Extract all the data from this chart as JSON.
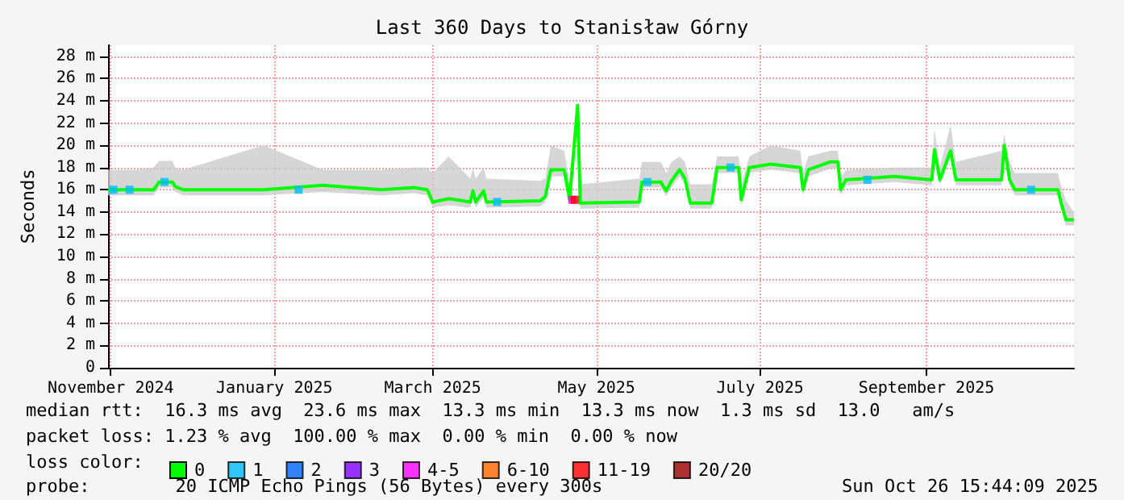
{
  "chart_data": {
    "type": "line",
    "title": "Last 360 Days to Stanisław Górny",
    "ylabel": "Seconds",
    "x": [
      "2024-10-31",
      "2024-11-10",
      "2024-11-17",
      "2024-11-19",
      "2024-11-24",
      "2024-11-25",
      "2024-11-28",
      "2024-12-28",
      "2025-01-19",
      "2025-02-10",
      "2025-02-22",
      "2025-02-27",
      "2025-03-01",
      "2025-03-07",
      "2025-03-15",
      "2025-03-16",
      "2025-03-17",
      "2025-03-20",
      "2025-03-21",
      "2025-04-10",
      "2025-04-12",
      "2025-04-14",
      "2025-04-19",
      "2025-04-21",
      "2025-04-24",
      "2025-04-25",
      "2025-05-17",
      "2025-05-18",
      "2025-05-25",
      "2025-05-27",
      "2025-05-29",
      "2025-06-01",
      "2025-06-03",
      "2025-06-05",
      "2025-06-13",
      "2025-06-15",
      "2025-06-23",
      "2025-06-24",
      "2025-06-27",
      "2025-07-05",
      "2025-07-16",
      "2025-07-17",
      "2025-07-19",
      "2025-07-27",
      "2025-07-30",
      "2025-07-31",
      "2025-08-02",
      "2025-08-20",
      "2025-09-03",
      "2025-09-04",
      "2025-09-06",
      "2025-09-10",
      "2025-09-12",
      "2025-09-29",
      "2025-09-30",
      "2025-10-02",
      "2025-10-04",
      "2025-10-20",
      "2025-10-21",
      "2025-10-23",
      "2025-10-26"
    ],
    "series": [
      {
        "name": "0",
        "color": "#00ff00",
        "values": [
          16,
          16,
          16,
          16.7,
          16.7,
          16.3,
          16,
          16,
          16.4,
          16,
          16.2,
          16,
          14.9,
          15.2,
          14.9,
          15.9,
          14.9,
          15.9,
          14.9,
          15,
          15.4,
          17.8,
          17.8,
          15.1,
          23.6,
          14.8,
          14.9,
          16.7,
          16.7,
          15.9,
          16.8,
          17.8,
          17,
          14.8,
          14.8,
          18,
          18,
          15.1,
          18,
          18.3,
          18,
          16,
          17.8,
          18.5,
          18.5,
          16,
          16.9,
          17.2,
          16.9,
          19.6,
          16.9,
          19.5,
          16.9,
          16.9,
          20,
          16.9,
          16,
          16,
          15,
          13.3,
          13.3
        ],
        "lower": [
          15.5,
          15.5,
          15.5,
          16.2,
          16.2,
          15.8,
          15.5,
          15.5,
          15.8,
          15.5,
          15.7,
          15.5,
          14.4,
          14.6,
          14.4,
          15.3,
          14.4,
          15.3,
          14.4,
          14.5,
          14.9,
          17.2,
          17.2,
          14.6,
          22.5,
          14.3,
          14.4,
          16.2,
          16.2,
          15.4,
          16.2,
          17.2,
          16.5,
          14.3,
          14.3,
          17.5,
          17.5,
          14.6,
          17.5,
          17.8,
          17.5,
          15.5,
          17.2,
          17.9,
          17.9,
          15.5,
          16.4,
          16.7,
          16.4,
          19,
          16.4,
          18.9,
          16.4,
          16.4,
          19.4,
          16.4,
          15.5,
          15.5,
          14.5,
          12.8,
          12.8
        ],
        "upper": [
          17.8,
          17.8,
          18,
          18.6,
          18.6,
          18,
          17.8,
          20,
          17.8,
          17.8,
          18,
          18,
          17.5,
          19,
          17,
          18,
          17,
          18,
          17,
          16.8,
          17,
          20,
          19.5,
          16.8,
          24,
          16.5,
          17,
          18.5,
          18.5,
          17.5,
          18.5,
          19,
          18.5,
          16.5,
          16.5,
          19,
          19,
          16.5,
          19,
          20,
          19.5,
          17.5,
          19,
          19.5,
          19.5,
          17,
          17.8,
          18,
          18,
          21.5,
          18,
          21.8,
          18.5,
          19.5,
          21,
          18.5,
          17.5,
          17.5,
          16.5,
          15,
          14
        ]
      },
      {
        "name": "1",
        "color": "#00bbff",
        "type": "scatter",
        "marker": "square",
        "x": [
          "2024-11-02",
          "2024-11-08",
          "2024-11-21",
          "2025-01-10",
          "2025-03-25",
          "2025-05-20",
          "2025-06-20",
          "2025-08-10",
          "2025-10-10"
        ],
        "values": [
          16,
          16,
          16.7,
          16,
          14.9,
          16.7,
          18,
          16.9,
          16
        ]
      },
      {
        "name": "2",
        "color": "#0066ff",
        "type": "scatter",
        "marker": "square",
        "x": [
          null
        ],
        "values": [
          null
        ]
      },
      {
        "name": "3",
        "color": "#8000ff",
        "type": "scatter",
        "marker": "square",
        "x": [
          null
        ],
        "values": [
          null
        ]
      },
      {
        "name": "4-5",
        "color": "#ff00ff",
        "type": "scatter",
        "marker": "square",
        "x": [
          "2025-04-22"
        ],
        "values": [
          15.1
        ]
      },
      {
        "name": "6-10",
        "color": "#ff6600",
        "type": "scatter",
        "marker": "square",
        "x": [
          null
        ],
        "values": [
          null
        ]
      },
      {
        "name": "11-19",
        "color": "#ff0000",
        "type": "scatter",
        "marker": "square",
        "x": [
          "2025-04-23"
        ],
        "values": [
          15.1
        ]
      },
      {
        "name": "20/20",
        "color": "#990000",
        "type": "scatter",
        "marker": "square",
        "x": [
          null
        ],
        "values": [
          null
        ]
      }
    ],
    "legend": "bottom",
    "legend_title": "loss color:",
    "grid": true,
    "xlim": [
      "2024-10-31",
      "2025-10-26"
    ],
    "xticks": [
      {
        "value": "2024-11-01",
        "label": "November 2024"
      },
      {
        "value": "2025-01-01",
        "label": "January 2025"
      },
      {
        "value": "2025-03-01",
        "label": "March 2025"
      },
      {
        "value": "2025-05-01",
        "label": "May 2025"
      },
      {
        "value": "2025-07-01",
        "label": "July 2025"
      },
      {
        "value": "2025-09-01",
        "label": "September 2025"
      }
    ],
    "ylim": [
      0,
      29
    ],
    "yticks": [
      0,
      {
        "value": 2,
        "label": "2 m"
      },
      {
        "value": 4,
        "label": "4 m"
      },
      {
        "value": 6,
        "label": "6 m"
      },
      {
        "value": 8,
        "label": "8 m"
      },
      {
        "value": 10,
        "label": "10 m"
      },
      {
        "value": 12,
        "label": "12 m"
      },
      {
        "value": 14,
        "label": "14 m"
      },
      {
        "value": 16,
        "label": "16 m"
      },
      {
        "value": 18,
        "label": "18 m"
      },
      {
        "value": 20,
        "label": "20 m"
      },
      {
        "value": 22,
        "label": "22 m"
      },
      {
        "value": 24,
        "label": "24 m"
      },
      {
        "value": 26,
        "label": "26 m"
      },
      {
        "value": 28,
        "label": "28 m"
      }
    ],
    "annotations": [
      "median rtt:  16.3 ms avg  23.6 ms max  13.3 ms min  13.3 ms now  1.3 ms sd  13.0   am/s",
      "packet loss: 1.23 % avg  100.00 % max  0.00 % min  0.00 % now",
      "probe:        20 ICMP Echo Pings (56 Bytes) every 300s",
      "Sun Oct 26 15:44:09 2025"
    ]
  }
}
